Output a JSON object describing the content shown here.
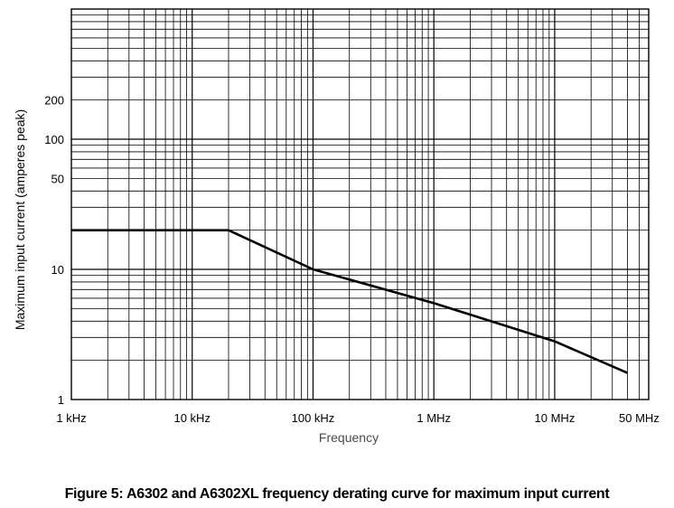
{
  "chart_data": {
    "type": "line",
    "title": "",
    "xlabel": "Frequency",
    "ylabel": "Maximum input current (amperes peak)",
    "x_scale": "log",
    "y_scale": "log",
    "xlim": [
      "1 kHz",
      "60 MHz"
    ],
    "ylim": [
      1,
      1000
    ],
    "grid": true,
    "x_ticks": [
      "1 kHz",
      "10 kHz",
      "100 kHz",
      "1 MHz",
      "10 MHz",
      "50 MHz"
    ],
    "y_ticks": [
      "200",
      "100",
      "50",
      "10",
      "1"
    ],
    "series": [
      {
        "color": "#000000",
        "x": [
          "1 kHz",
          "20 kHz",
          "100 kHz",
          "1 MHz",
          "10 MHz",
          "40 MHz"
        ],
        "y": [
          20,
          20,
          10,
          5.5,
          2.8,
          1.6
        ]
      }
    ]
  },
  "caption": "Figure 5: A6302 and A6302XL frequency derating curve for maximum input current"
}
